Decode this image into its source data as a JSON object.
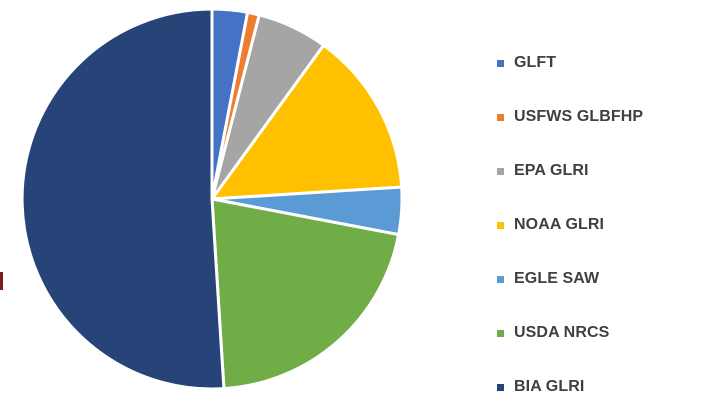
{
  "chart_data": {
    "type": "pie",
    "categories": [
      "GLFT",
      "USFWS GLBFHP",
      "EPA GLRI",
      "NOAA GLRI",
      "EGLE SAW",
      "USDA NRCS",
      "BIA GLRI"
    ],
    "values": [
      3,
      1,
      6,
      14,
      4,
      21,
      51
    ],
    "colors": [
      "#4472C4",
      "#ED7D31",
      "#A5A5A5",
      "#FFC000",
      "#5B9BD5",
      "#70AD47",
      "#264478"
    ],
    "start_angle_deg": 0,
    "direction": "clockwise",
    "legend_position": "right"
  }
}
